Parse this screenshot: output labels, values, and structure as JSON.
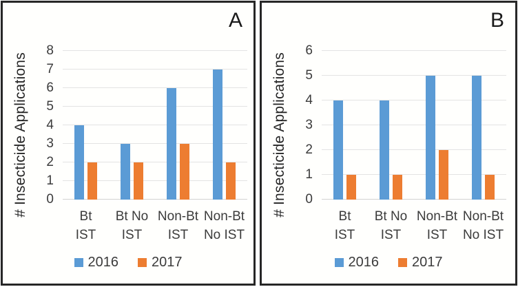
{
  "figure": {
    "background": "#ffffff",
    "panel_border_color": "#262626",
    "gridline_color": "#e3e3e3",
    "text_color": "#3b3b3b"
  },
  "chart_data": [
    {
      "type": "bar",
      "panel_label": "A",
      "title": "",
      "xlabel": "",
      "ylabel": "# Insecticide Applications",
      "ylim": [
        0,
        8
      ],
      "ytick_step": 1,
      "grid": true,
      "legend_position": "bottom",
      "categories": [
        "Bt IST",
        "Bt No IST",
        "Non-Bt IST",
        "Non-Bt No IST"
      ],
      "category_lines": [
        [
          "Bt",
          "IST"
        ],
        [
          "Bt No",
          "IST"
        ],
        [
          "Non-Bt",
          "IST"
        ],
        [
          "Non-Bt",
          "No IST"
        ]
      ],
      "series": [
        {
          "name": "2016",
          "color": "#5B9BD5",
          "values": [
            4,
            3,
            6,
            7
          ]
        },
        {
          "name": "2017",
          "color": "#ED7D31",
          "values": [
            2,
            2,
            3,
            2
          ]
        }
      ]
    },
    {
      "type": "bar",
      "panel_label": "B",
      "title": "",
      "xlabel": "",
      "ylabel": "# Insecticide Applications",
      "ylim": [
        0,
        6
      ],
      "ytick_step": 1,
      "grid": true,
      "legend_position": "bottom",
      "categories": [
        "Bt IST",
        "Bt No IST",
        "Non-Bt IST",
        "Non-Bt No IST"
      ],
      "category_lines": [
        [
          "Bt",
          "IST"
        ],
        [
          "Bt No",
          "IST"
        ],
        [
          "Non-Bt",
          "IST"
        ],
        [
          "Non-Bt",
          "No IST"
        ]
      ],
      "series": [
        {
          "name": "2016",
          "color": "#5B9BD5",
          "values": [
            4,
            4,
            5,
            5
          ]
        },
        {
          "name": "2017",
          "color": "#ED7D31",
          "values": [
            1,
            1,
            2,
            1
          ]
        }
      ]
    }
  ]
}
